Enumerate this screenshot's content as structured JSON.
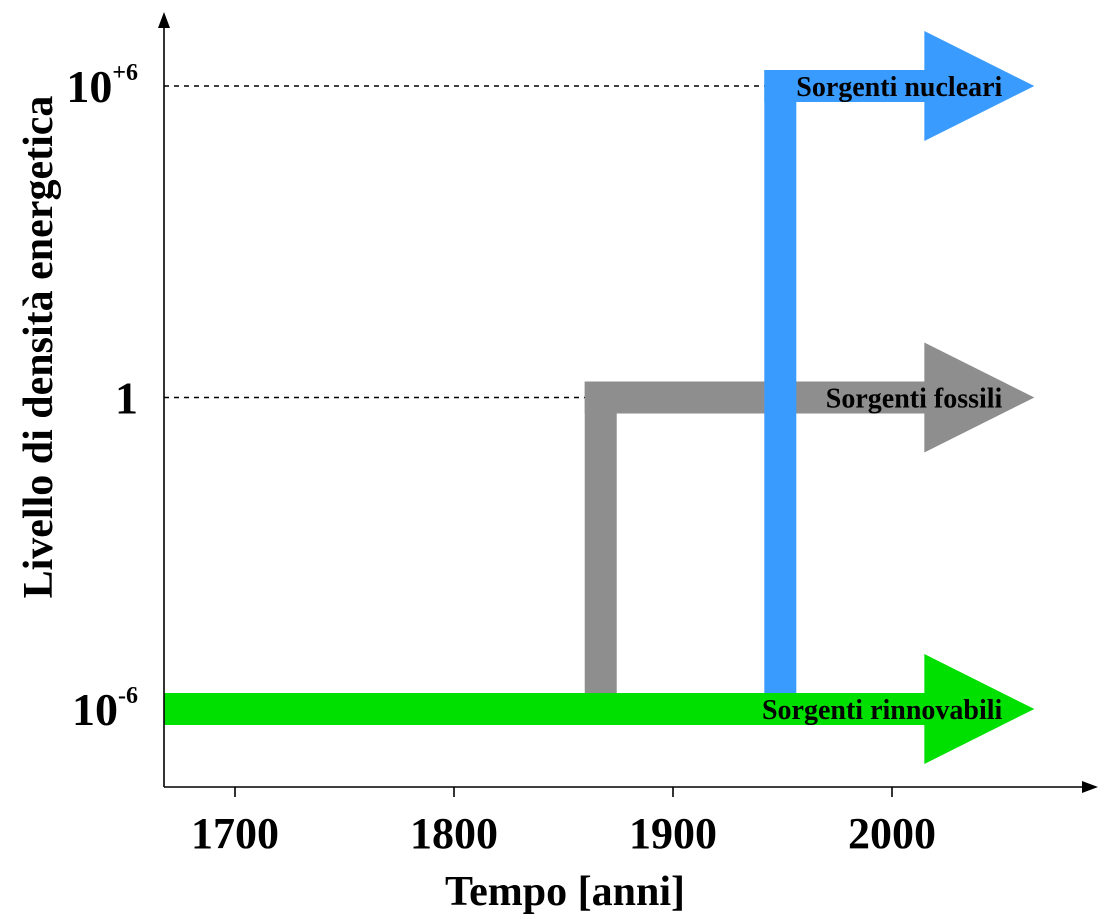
{
  "chart_data": {
    "type": "line",
    "title": "",
    "xlabel": "Tempo [anni]",
    "ylabel": "Livello di densità energetica",
    "x_ticks": [
      "1700",
      "1800",
      "1900",
      "2000"
    ],
    "y_ticks": [
      {
        "base": "10",
        "exponent": "-6",
        "value": 1e-06
      },
      {
        "base": "1",
        "exponent": "",
        "value": 1
      },
      {
        "base": "10",
        "exponent": "+6",
        "value": 1000000.0
      }
    ],
    "y_scale": "log",
    "xlim": [
      1667,
      2105
    ],
    "grid": false,
    "series": [
      {
        "name": "Sorgenti rinnovabili",
        "color": "#00e000",
        "start_year": 1667,
        "end_year": 2065,
        "level": 1e-06,
        "rise_year": null
      },
      {
        "name": "Sorgenti fossili",
        "color": "#8e8e8e",
        "start_year": 1867,
        "end_year": 2065,
        "level": 1,
        "rise_year": 1867
      },
      {
        "name": "Sorgenti nucleari",
        "color": "#3a9bff",
        "start_year": 1949,
        "end_year": 2065,
        "level": 1000000.0,
        "rise_year": 1949
      }
    ]
  }
}
